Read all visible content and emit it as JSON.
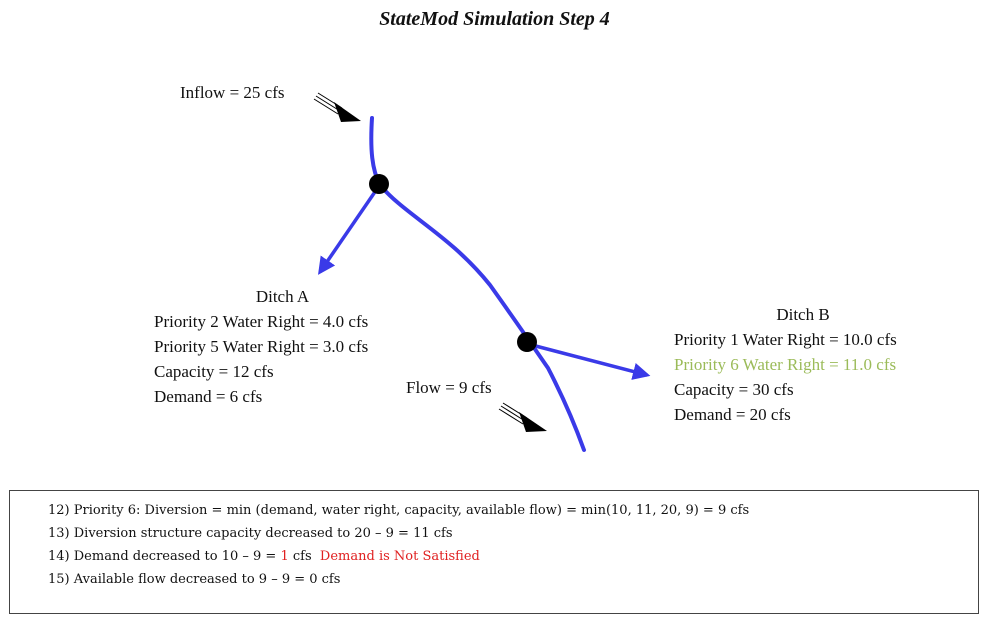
{
  "title": "StateMod Simulation Step 4",
  "inflow_label": "Inflow = 25 cfs",
  "flow_label": "Flow = 9 cfs",
  "ditch_a": {
    "name": "Ditch A",
    "lines": [
      "Priority 2 Water Right = 4.0 cfs",
      "Priority 5 Water Right = 3.0 cfs",
      "Capacity = 12 cfs",
      "Demand = 6 cfs"
    ]
  },
  "ditch_b": {
    "name": "Ditch B",
    "line1": "Priority 1 Water Right = 10.0 cfs",
    "line2_highlighted": "Priority 6 Water Right = 11.0 cfs",
    "line3": "Capacity = 30 cfs",
    "line4": "Demand = 20 cfs"
  },
  "steps": {
    "s12": "12) Priority 6: Diversion = min (demand, water right, capacity, available flow) = min(10, 11, 20, 9) = 9 cfs",
    "s13": "13) Diversion structure capacity decreased to 20 – 9 = 11 cfs",
    "s14_prefix": "14) Demand decreased to 10 – 9 = ",
    "s14_value": "1",
    "s14_suffix": " cfs",
    "s14_note": "Demand is Not Satisfied",
    "s15": "15) Available flow decreased to 9 – 9 = 0 cfs"
  },
  "colors": {
    "river": "#3a3ae8",
    "highlight": "#9bbb59",
    "alert": "#e02020"
  }
}
